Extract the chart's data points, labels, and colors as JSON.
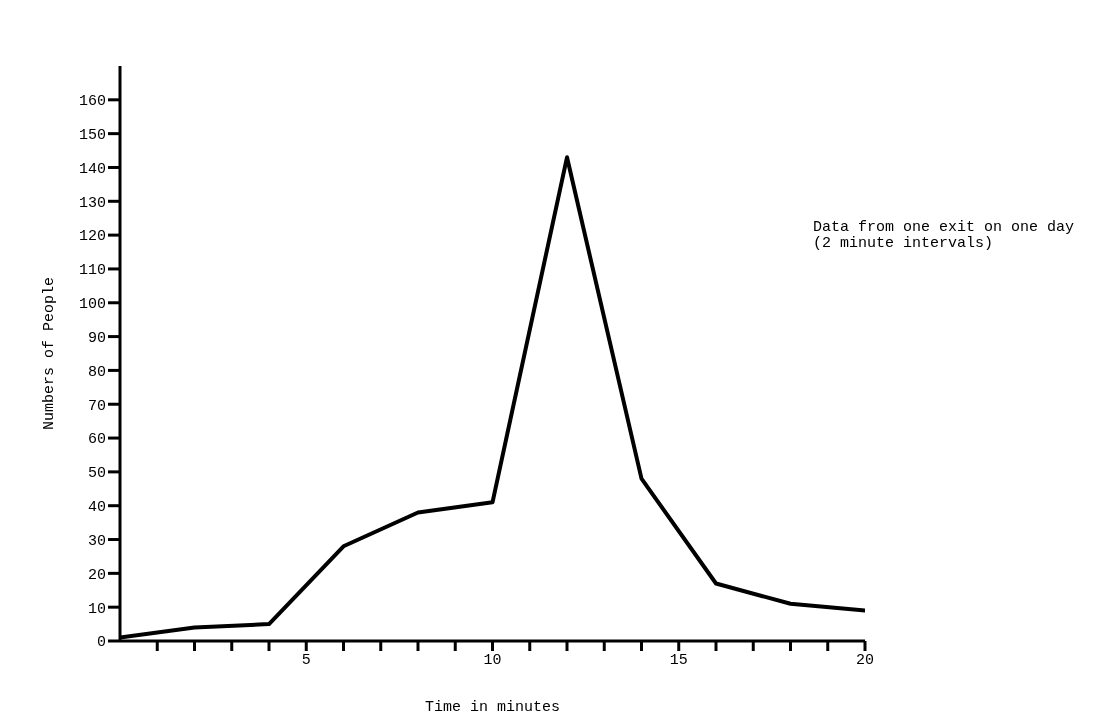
{
  "chart_data": {
    "type": "line",
    "xlabel": "Time in minutes",
    "ylabel": "Numbers of People",
    "annotations": [
      "Data from one exit on one day\n(2 minute intervals)"
    ],
    "x": [
      0,
      2,
      4,
      6,
      8,
      10,
      12,
      14,
      16,
      18,
      20
    ],
    "series": [
      {
        "color": "#000000",
        "values": [
          1,
          4,
          5,
          28,
          38,
          41,
          143,
          48,
          17,
          11,
          9
        ]
      }
    ],
    "xlim": [
      0,
      20
    ],
    "xticks": [
      {
        "value": 1,
        "label": null
      },
      {
        "value": 2,
        "label": null
      },
      {
        "value": 3,
        "label": null
      },
      {
        "value": 4,
        "label": null
      },
      5,
      {
        "value": 6,
        "label": null
      },
      {
        "value": 7,
        "label": null
      },
      {
        "value": 8,
        "label": null
      },
      {
        "value": 9,
        "label": null
      },
      10,
      {
        "value": 11,
        "label": null
      },
      {
        "value": 12,
        "label": null
      },
      {
        "value": 13,
        "label": null
      },
      {
        "value": 14,
        "label": null
      },
      15,
      {
        "value": 16,
        "label": null
      },
      {
        "value": 17,
        "label": null
      },
      {
        "value": 18,
        "label": null
      },
      {
        "value": 19,
        "label": null
      },
      20
    ],
    "ylim": [
      0,
      170
    ],
    "yticks": [
      0,
      10,
      20,
      30,
      40,
      50,
      60,
      70,
      80,
      90,
      100,
      110,
      120,
      130,
      140,
      150,
      160
    ],
    "grid": false,
    "legend": false,
    "marker": "none",
    "line_style": "solid"
  }
}
